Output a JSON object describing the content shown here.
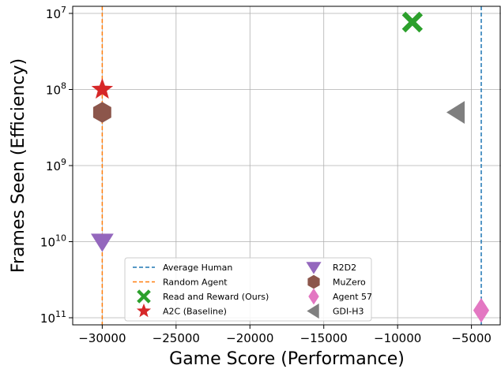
{
  "chart_data": {
    "type": "scatter",
    "title": "",
    "xlabel": "Game Score (Performance)",
    "ylabel": "Frames Seen (Efficiency)",
    "xlim": [
      -32000,
      -3000
    ],
    "ylim": [
      10000000,
      100000000000
    ],
    "yscale": "log",
    "yinverted": true,
    "grid": true,
    "legend_position": "bottom-center",
    "xticks": [
      -30000,
      -25000,
      -20000,
      -15000,
      -10000,
      -5000
    ],
    "xtick_labels": [
      "−30000",
      "−25000",
      "−20000",
      "−15000",
      "−10000",
      "−5000"
    ],
    "yticks": [
      {
        "value": 10000000,
        "base": "10",
        "exp": "7"
      },
      {
        "value": 100000000,
        "base": "10",
        "exp": "8"
      },
      {
        "value": 1000000000,
        "base": "10",
        "exp": "9"
      },
      {
        "value": 10000000000,
        "base": "10",
        "exp": "10"
      },
      {
        "value": 100000000000,
        "base": "10",
        "exp": "11"
      }
    ],
    "reference_lines": [
      {
        "name": "Average Human",
        "x": -4337,
        "color": "#1f77b4"
      },
      {
        "name": "Random Agent",
        "x": -30000,
        "color": "#ff7f0e"
      }
    ],
    "series": [
      {
        "name": "Read and Reward (Ours)",
        "marker": "x-thick",
        "color": "#2ca02c",
        "x": -9000,
        "y": 13000000
      },
      {
        "name": "A2C (Baseline)",
        "marker": "star",
        "color": "#d62728",
        "x": -30000,
        "y": 100000000
      },
      {
        "name": "R2D2",
        "marker": "triangle-down",
        "color": "#9467bd",
        "x": -30000,
        "y": 10000000000
      },
      {
        "name": "MuZero",
        "marker": "hexagon",
        "color": "#8c564b",
        "x": -30000,
        "y": 200000000
      },
      {
        "name": "Agent 57",
        "marker": "diamond",
        "color": "#e377c2",
        "x": -4340,
        "y": 80000000000
      },
      {
        "name": "GDI-H3",
        "marker": "triangle-left",
        "color": "#7f7f7f",
        "x": -6000,
        "y": 200000000
      }
    ],
    "legend": {
      "columns": [
        [
          "Average Human",
          "Random Agent",
          "Read and Reward (Ours)",
          "A2C (Baseline)"
        ],
        [
          "R2D2",
          "MuZero",
          "Agent 57",
          "GDI-H3"
        ]
      ]
    }
  }
}
